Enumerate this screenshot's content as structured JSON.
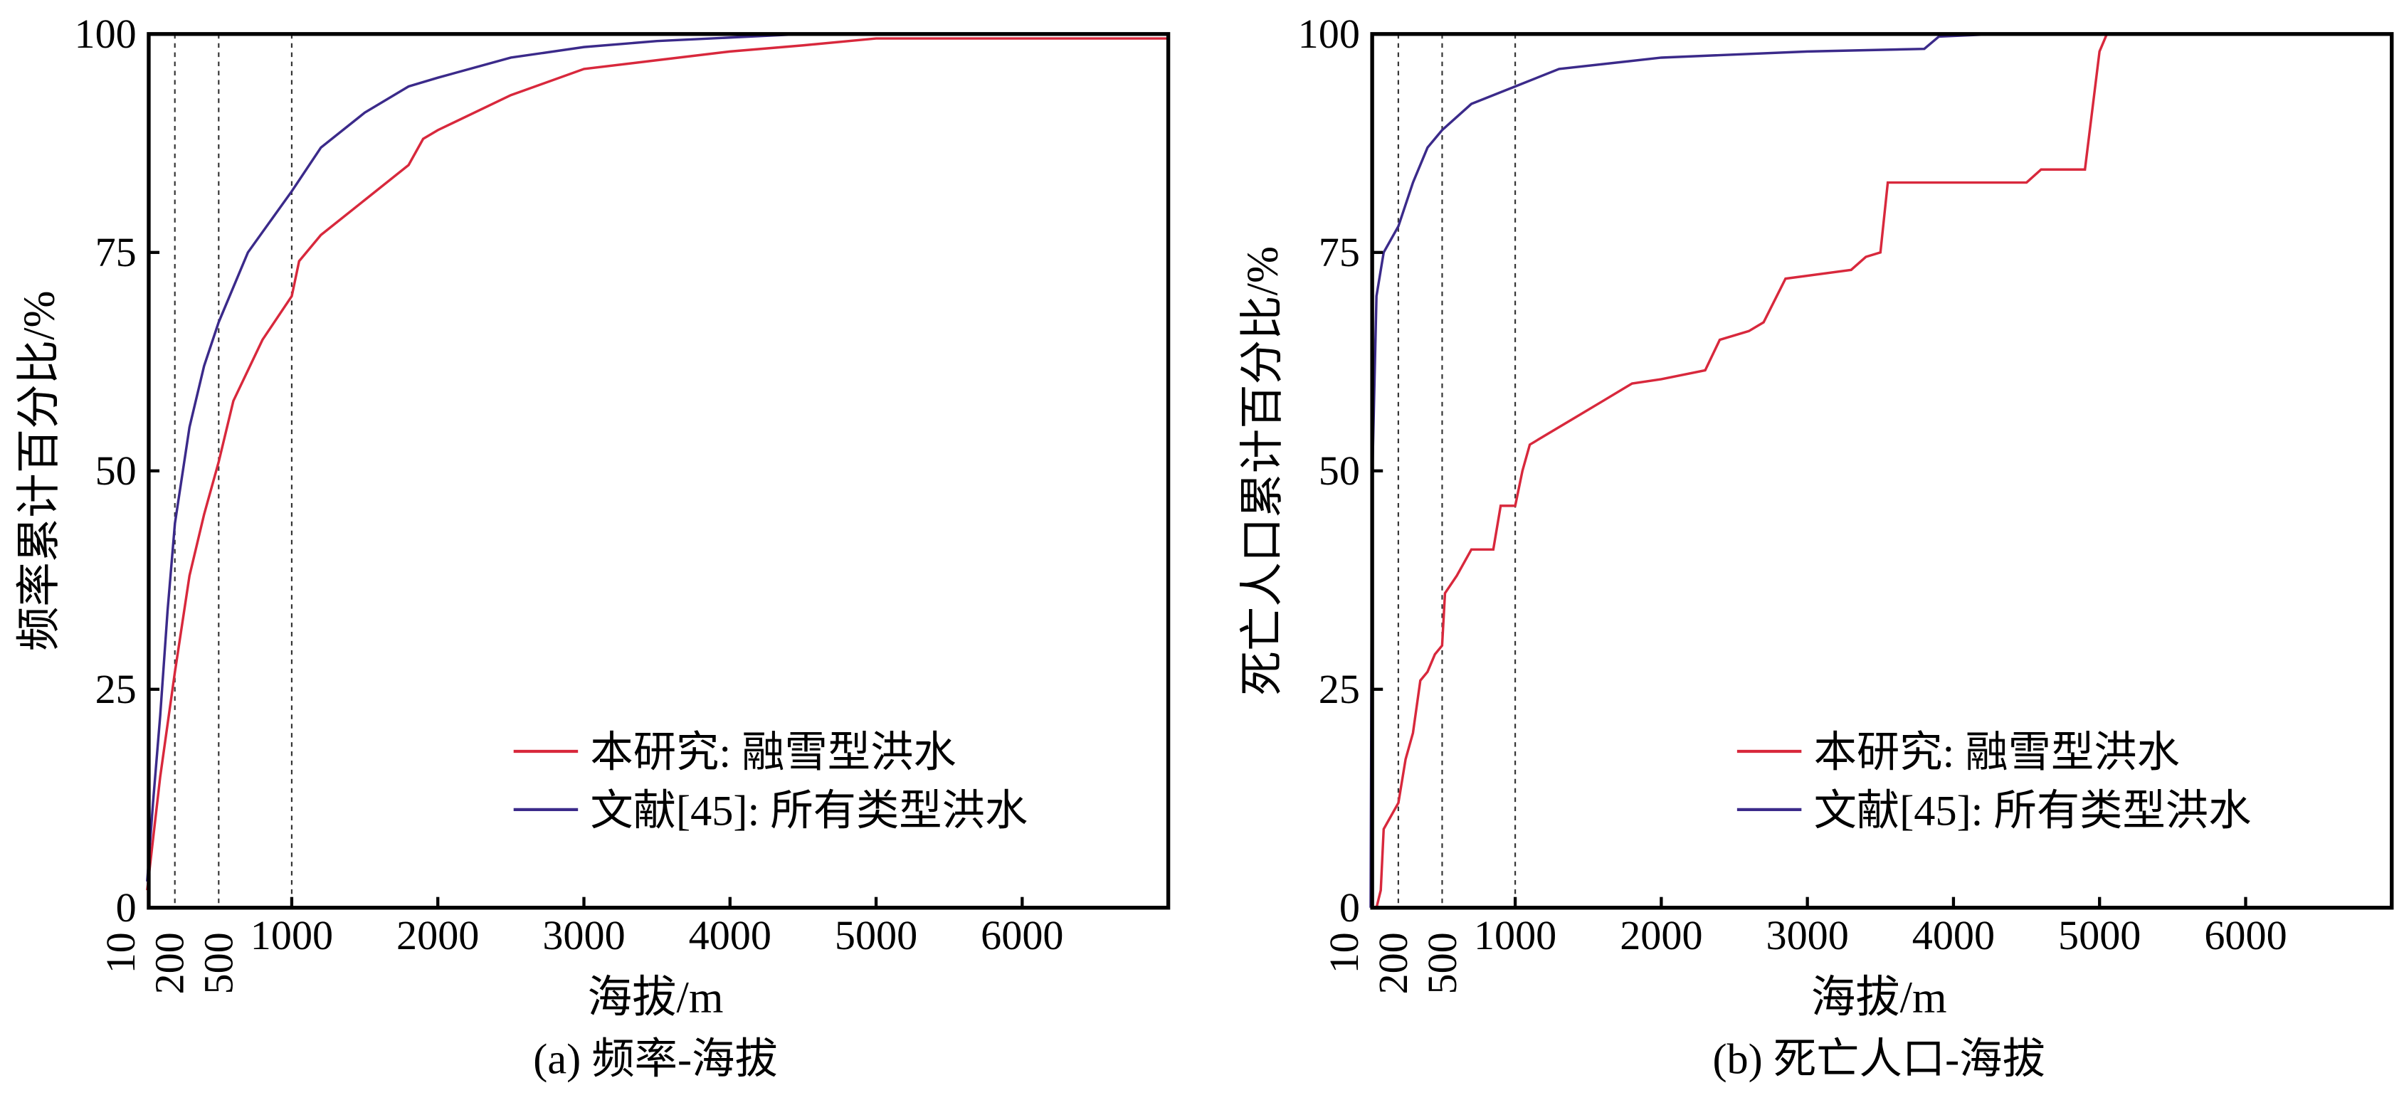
{
  "chart_data": [
    {
      "type": "line",
      "caption": "(a) 频率-海拔",
      "xlabel": "海拔/m",
      "ylabel": "频率累计百分比/%",
      "xlim": [
        0,
        7000
      ],
      "ylim": [
        0,
        100
      ],
      "yticks": [
        0,
        25,
        50,
        75,
        100
      ],
      "xticks_rotated": [
        10,
        200,
        500
      ],
      "xticks": [
        1000,
        2000,
        3000,
        4000,
        5000,
        6000
      ],
      "reference_lines": [
        200,
        500,
        1000
      ],
      "legend_position": "bottom-right",
      "series": [
        {
          "name": "本研究: 融雪型洪水",
          "color": "#d8283c",
          "x": [
            10,
            100,
            200,
            300,
            400,
            500,
            600,
            800,
            1000,
            1050,
            1200,
            1500,
            1800,
            1900,
            2000,
            2500,
            3000,
            3500,
            4000,
            4500,
            5000,
            7000
          ],
          "y": [
            2,
            15,
            27,
            38,
            45,
            51,
            58,
            65,
            70,
            74,
            77,
            81,
            85,
            88,
            89,
            93,
            96,
            97,
            98,
            98.7,
            99.5,
            99.5
          ]
        },
        {
          "name": "文献[45]: 所有类型洪水",
          "color": "#3b2a8a",
          "x": [
            10,
            50,
            100,
            150,
            200,
            300,
            400,
            500,
            700,
            1000,
            1200,
            1500,
            1800,
            2000,
            2500,
            3000,
            3500,
            4000,
            4500,
            7000
          ],
          "y": [
            3,
            12,
            22,
            34,
            44,
            55,
            62,
            67,
            75,
            82,
            87,
            91,
            94,
            95,
            97.3,
            98.5,
            99.2,
            99.6,
            100,
            100
          ]
        }
      ]
    },
    {
      "type": "line",
      "caption": "(b) 死亡人口-海拔",
      "xlabel": "海拔/m",
      "ylabel": "死亡人口累计百分比/%",
      "xlim": [
        0,
        7000
      ],
      "ylim": [
        0,
        100
      ],
      "yticks": [
        0,
        25,
        50,
        75,
        100
      ],
      "xticks_rotated": [
        10,
        200,
        500
      ],
      "xticks": [
        1000,
        2000,
        3000,
        4000,
        5000,
        6000
      ],
      "reference_lines": [
        200,
        500,
        1000
      ],
      "legend_position": "bottom-right",
      "series": [
        {
          "name": "本研究: 融雪型洪水",
          "color": "#d8283c",
          "x": [
            50,
            80,
            100,
            200,
            250,
            300,
            350,
            400,
            450,
            500,
            520,
            600,
            700,
            850,
            900,
            1000,
            1050,
            1100,
            1200,
            1400,
            1600,
            1800,
            2000,
            2300,
            2400,
            2600,
            2700,
            2850,
            3300,
            3400,
            3500,
            3550,
            4500,
            4600,
            4900,
            5000,
            5050,
            7000
          ],
          "y": [
            0,
            2,
            9,
            12,
            17,
            20,
            26,
            27,
            29,
            30,
            36,
            38,
            41,
            41,
            46,
            46,
            50,
            53,
            54,
            56,
            58,
            60,
            60.5,
            61.5,
            65,
            66,
            67,
            72,
            73,
            74.5,
            75,
            83,
            83,
            84.5,
            84.5,
            98,
            100,
            100
          ]
        },
        {
          "name": "文献[45]:  所有类型洪水",
          "color": "#3b2a8a",
          "x": [
            10,
            20,
            50,
            100,
            200,
            300,
            400,
            500,
            700,
            1000,
            1300,
            2000,
            3000,
            3800,
            3900,
            4300,
            7000
          ],
          "y": [
            0,
            48,
            70,
            75,
            78,
            83,
            87,
            89,
            92,
            94,
            96,
            97.3,
            98,
            98.3,
            99.7,
            100,
            100
          ]
        }
      ]
    }
  ]
}
